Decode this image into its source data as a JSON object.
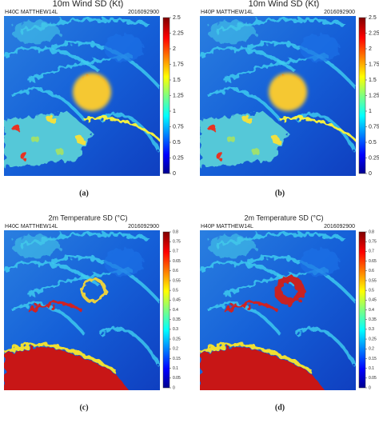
{
  "panels": [
    {
      "title": "10m Wind SD (Kt)",
      "left_label": "H40C MATTHEW14L",
      "right_label": "2016092900",
      "colorbar": {
        "lim": [
          0,
          2.5
        ],
        "ticks": [
          0,
          0.25,
          0.5,
          0.75,
          1,
          1.25,
          1.5,
          1.75,
          2,
          2.25,
          2.5
        ]
      },
      "caption": "(a)"
    },
    {
      "title": "10m Wind SD (Kt)",
      "left_label": "H40P MATTHEW14L",
      "right_label": "2016092900",
      "colorbar": {
        "lim": [
          0,
          2.5
        ],
        "ticks": [
          0,
          0.25,
          0.5,
          0.75,
          1,
          1.25,
          1.5,
          1.75,
          2,
          2.25,
          2.5
        ]
      },
      "caption": "(b)"
    },
    {
      "title": "2m Temperature SD (°C)",
      "left_label": "H40C MATTHEW14L",
      "right_label": "2016092900",
      "colorbar": {
        "lim": [
          0,
          0.8
        ],
        "ticks": [
          0,
          0.05,
          0.1,
          0.15,
          0.2,
          0.25,
          0.3,
          0.35,
          0.4,
          0.45,
          0.5,
          0.55,
          0.6,
          0.65,
          0.7,
          0.75,
          0.8
        ]
      },
      "caption": "(c)"
    },
    {
      "title": "2m Temperature SD (°C)",
      "left_label": "H40P MATTHEW14L",
      "right_label": "2016092900",
      "colorbar": {
        "lim": [
          0,
          0.8
        ],
        "ticks": [
          0,
          0.05,
          0.1,
          0.15,
          0.2,
          0.25,
          0.3,
          0.35,
          0.4,
          0.45,
          0.5,
          0.55,
          0.6,
          0.65,
          0.7,
          0.75,
          0.8
        ]
      },
      "caption": "(d)"
    }
  ]
}
